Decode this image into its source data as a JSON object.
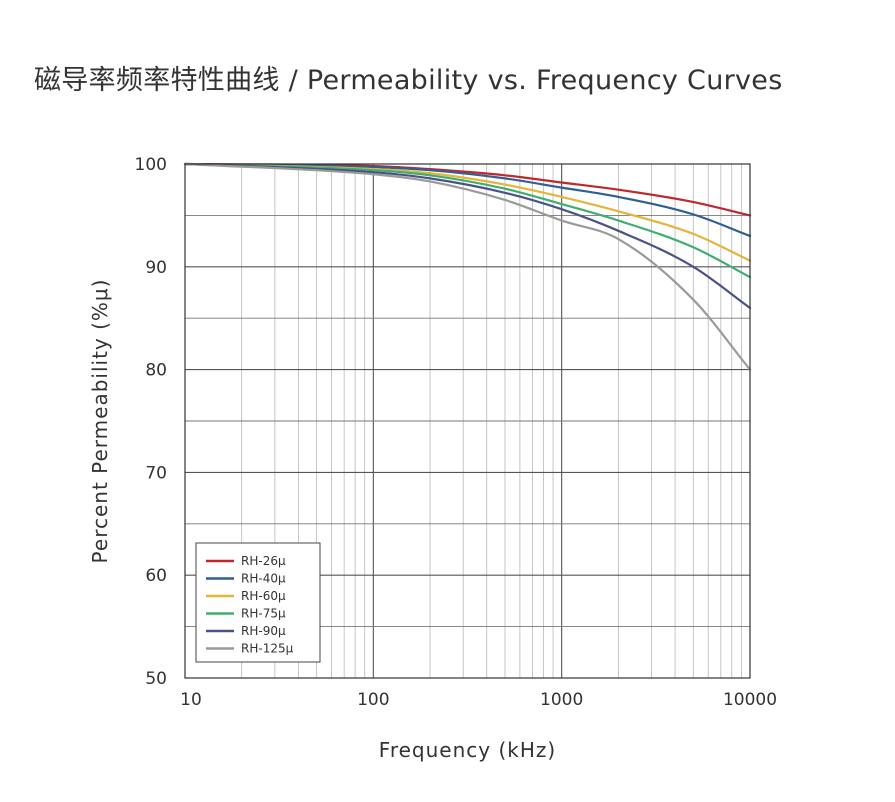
{
  "chart_data": {
    "type": "line",
    "title": "磁导率频率特性曲线 / Permeability vs. Frequency Curves",
    "xlabel": "Frequency (kHz)",
    "ylabel": "Percent Permeability (%μ)",
    "xscale": "log",
    "xlim": [
      10,
      10000
    ],
    "ylim": [
      50,
      100
    ],
    "xticks": [
      "10",
      "100",
      "1000",
      "10000"
    ],
    "yticks": [
      "100",
      "90",
      "80",
      "70",
      "60",
      "50"
    ],
    "grid": true,
    "legend_position": "bottom-left",
    "x": [
      10,
      100,
      200,
      500,
      1000,
      2000,
      5000,
      10000
    ],
    "series": [
      {
        "name": "RH-26μ",
        "color": "#c0282d",
        "values": [
          100,
          99.8,
          99.5,
          98.9,
          98.2,
          97.5,
          96.3,
          95.0
        ]
      },
      {
        "name": "RH-40μ",
        "color": "#2f5f93",
        "values": [
          100,
          99.7,
          99.4,
          98.6,
          97.7,
          96.8,
          95.1,
          93.0
        ]
      },
      {
        "name": "RH-60μ",
        "color": "#e5b43a",
        "values": [
          100,
          99.5,
          99.1,
          98.0,
          96.8,
          95.4,
          93.2,
          90.6
        ]
      },
      {
        "name": "RH-75μ",
        "color": "#3fae70",
        "values": [
          100,
          99.4,
          98.9,
          97.6,
          96.1,
          94.5,
          91.9,
          89.0
        ]
      },
      {
        "name": "RH-90μ",
        "color": "#4a5288",
        "values": [
          100,
          99.2,
          98.6,
          97.2,
          95.6,
          93.5,
          90.0,
          86.0
        ]
      },
      {
        "name": "RH-125μ",
        "color": "#9a9a9a",
        "values": [
          100,
          99.0,
          98.3,
          96.5,
          94.5,
          92.7,
          86.8,
          80.0
        ]
      }
    ]
  }
}
